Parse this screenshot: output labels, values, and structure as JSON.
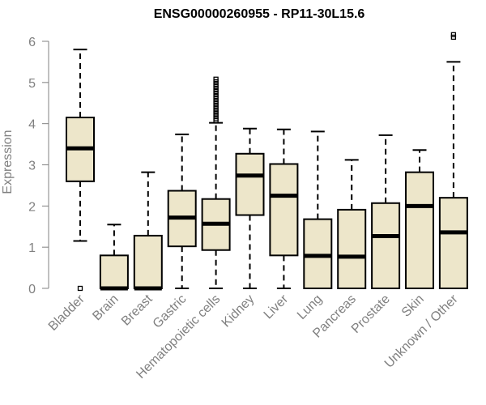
{
  "chart_data": {
    "type": "box",
    "title": "ENSG00000260955 - RP11-30L15.6",
    "xlabel": "",
    "ylabel": "Expression",
    "ylim": [
      0,
      6.1
    ],
    "yticks": [
      0,
      1,
      2,
      3,
      4,
      5,
      6
    ],
    "grid": false,
    "legend": "none",
    "categories": [
      "Bladder",
      "Brain",
      "Breast",
      "Gastric",
      "Hematopoietic cells",
      "Kidney",
      "Liver",
      "Lung",
      "Pancreas",
      "Prostate",
      "Skin",
      "Unknown / Other"
    ],
    "boxes": [
      {
        "category": "Bladder",
        "whisker_low": 1.15,
        "q1": 2.6,
        "median": 3.4,
        "q3": 4.15,
        "whisker_high": 5.8,
        "outliers": [
          0.0
        ]
      },
      {
        "category": "Brain",
        "whisker_low": 0.0,
        "q1": 0.0,
        "median": 0.0,
        "q3": 0.8,
        "whisker_high": 1.55,
        "outliers": []
      },
      {
        "category": "Breast",
        "whisker_low": 0.0,
        "q1": 0.0,
        "median": 0.0,
        "q3": 1.28,
        "whisker_high": 2.82,
        "outliers": []
      },
      {
        "category": "Gastric",
        "whisker_low": 0.0,
        "q1": 1.02,
        "median": 1.72,
        "q3": 2.37,
        "whisker_high": 3.74,
        "outliers": []
      },
      {
        "category": "Hematopoietic cells",
        "whisker_low": 0.0,
        "q1": 0.93,
        "median": 1.57,
        "q3": 2.17,
        "whisker_high": 4.02,
        "outliers": [
          4.07,
          4.12,
          4.18,
          4.24,
          4.3,
          4.36,
          4.42,
          4.48,
          4.54,
          4.6,
          4.66,
          4.72,
          4.78,
          4.84,
          4.9,
          4.96,
          5.02,
          5.08
        ]
      },
      {
        "category": "Kidney",
        "whisker_low": 0.0,
        "q1": 1.78,
        "median": 2.74,
        "q3": 3.27,
        "whisker_high": 3.88,
        "outliers": []
      },
      {
        "category": "Liver",
        "whisker_low": 0.0,
        "q1": 0.8,
        "median": 2.25,
        "q3": 3.02,
        "whisker_high": 3.86,
        "outliers": []
      },
      {
        "category": "Lung",
        "whisker_low": 0.0,
        "q1": 0.0,
        "median": 0.79,
        "q3": 1.68,
        "whisker_high": 3.81,
        "outliers": []
      },
      {
        "category": "Pancreas",
        "whisker_low": 0.0,
        "q1": 0.0,
        "median": 0.77,
        "q3": 1.91,
        "whisker_high": 3.12,
        "outliers": []
      },
      {
        "category": "Prostate",
        "whisker_low": 0.0,
        "q1": 0.0,
        "median": 1.27,
        "q3": 2.07,
        "whisker_high": 3.72,
        "outliers": []
      },
      {
        "category": "Skin",
        "whisker_low": 0.0,
        "q1": 0.0,
        "median": 2.0,
        "q3": 2.82,
        "whisker_high": 3.36,
        "outliers": []
      },
      {
        "category": "Unknown / Other",
        "whisker_low": 0.0,
        "q1": 0.0,
        "median": 1.36,
        "q3": 2.2,
        "whisker_high": 5.5,
        "outliers": [
          6.1,
          6.16
        ]
      }
    ],
    "colors": {
      "box_fill": "#ede6ca",
      "box_stroke": "#000000",
      "axis": "#808080",
      "tick_text": "#808080",
      "title": "#000000"
    }
  }
}
